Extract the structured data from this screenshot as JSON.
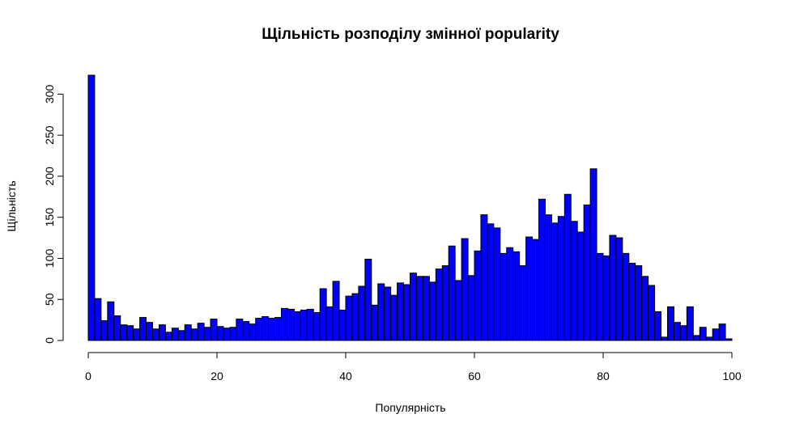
{
  "chart_data": {
    "type": "bar",
    "title": "Щільність розподілу змінної popularity",
    "xlabel": "Популярність",
    "ylabel": "Щільність",
    "bar_color": "#0000ff",
    "bar_edge_color": "#000000",
    "xlim": [
      0,
      100
    ],
    "ylim": [
      0,
      325
    ],
    "x_ticks": [
      0,
      20,
      40,
      60,
      80,
      100
    ],
    "y_ticks": [
      0,
      50,
      100,
      150,
      200,
      250,
      300
    ],
    "bin_width": 1,
    "bin_start": 0,
    "values": [
      323,
      51,
      24,
      47,
      30,
      19,
      18,
      14,
      28,
      22,
      14,
      19,
      10,
      15,
      12,
      19,
      14,
      21,
      16,
      26,
      17,
      15,
      16,
      26,
      23,
      20,
      27,
      29,
      27,
      28,
      39,
      38,
      35,
      37,
      38,
      34,
      63,
      41,
      72,
      37,
      54,
      57,
      66,
      99,
      43,
      69,
      65,
      55,
      70,
      68,
      82,
      78,
      78,
      71,
      87,
      91,
      115,
      73,
      124,
      79,
      109,
      153,
      142,
      137,
      106,
      113,
      108,
      91,
      126,
      123,
      172,
      153,
      143,
      151,
      178,
      145,
      132,
      165,
      209,
      106,
      103,
      128,
      125,
      106,
      94,
      91,
      78,
      67,
      35,
      4,
      41,
      22,
      18,
      41,
      6,
      16,
      4,
      14,
      20,
      2
    ]
  }
}
